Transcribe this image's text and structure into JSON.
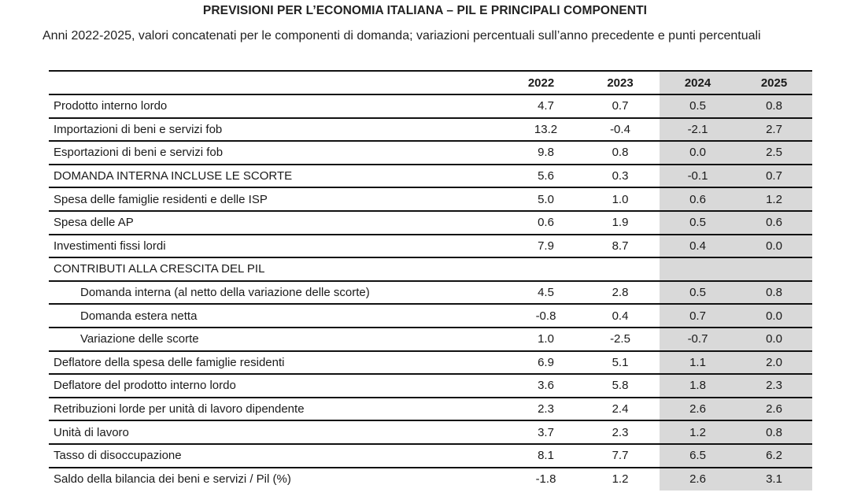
{
  "document": {
    "title": "PREVISIONI PER L’ECONOMIA ITALIANA – PIL E PRINCIPALI COMPONENTI",
    "subtitle": "Anni 2022-2025, valori concatenati per le componenti di domanda; variazioni percentuali sull’anno precedente e punti percentuali"
  },
  "table": {
    "header": {
      "label": "",
      "years": [
        "2022",
        "2023",
        "2024",
        "2025"
      ]
    },
    "forecast_shade_color": "#d9d9d9",
    "rows": [
      {
        "label": "Prodotto interno lordo",
        "indent": false,
        "values": [
          "4.7",
          "0.7",
          "0.5",
          "0.8"
        ]
      },
      {
        "label": "Importazioni di beni e servizi fob",
        "indent": false,
        "values": [
          "13.2",
          "-0.4",
          "-2.1",
          "2.7"
        ]
      },
      {
        "label": "Esportazioni di beni e servizi fob",
        "indent": false,
        "values": [
          "9.8",
          "0.8",
          "0.0",
          "2.5"
        ]
      },
      {
        "label": "DOMANDA INTERNA INCLUSE LE SCORTE",
        "indent": false,
        "values": [
          "5.6",
          "0.3",
          "-0.1",
          "0.7"
        ]
      },
      {
        "label": "Spesa delle famiglie residenti e delle ISP",
        "indent": false,
        "values": [
          "5.0",
          "1.0",
          "0.6",
          "1.2"
        ]
      },
      {
        "label": "Spesa delle AP",
        "indent": false,
        "values": [
          "0.6",
          "1.9",
          "0.5",
          "0.6"
        ]
      },
      {
        "label": "Investimenti fissi lordi",
        "indent": false,
        "values": [
          "7.9",
          "8.7",
          "0.4",
          "0.0"
        ]
      },
      {
        "label": "CONTRIBUTI ALLA CRESCITA DEL PIL",
        "indent": false,
        "values": [
          "",
          "",
          "",
          ""
        ]
      },
      {
        "label": "Domanda interna (al netto della variazione delle scorte)",
        "indent": true,
        "values": [
          "4.5",
          "2.8",
          "0.5",
          "0.8"
        ]
      },
      {
        "label": "Domanda estera netta",
        "indent": true,
        "values": [
          "-0.8",
          "0.4",
          "0.7",
          "0.0"
        ]
      },
      {
        "label": "Variazione delle scorte",
        "indent": true,
        "values": [
          "1.0",
          "-2.5",
          "-0.7",
          "0.0"
        ]
      },
      {
        "label": "Deflatore della spesa delle famiglie residenti",
        "indent": false,
        "values": [
          "6.9",
          "5.1",
          "1.1",
          "2.0"
        ]
      },
      {
        "label": "Deflatore del prodotto interno lordo",
        "indent": false,
        "values": [
          "3.6",
          "5.8",
          "1.8",
          "2.3"
        ]
      },
      {
        "label": "Retribuzioni lorde per unità di lavoro dipendente",
        "indent": false,
        "values": [
          "2.3",
          "2.4",
          "2.6",
          "2.6"
        ]
      },
      {
        "label": "Unità di lavoro",
        "indent": false,
        "values": [
          "3.7",
          "2.3",
          "1.2",
          "0.8"
        ]
      },
      {
        "label": "Tasso di disoccupazione",
        "indent": false,
        "values": [
          "8.1",
          "7.7",
          "6.5",
          "6.2"
        ]
      },
      {
        "label": "Saldo della bilancia dei beni e servizi / Pil (%)",
        "indent": false,
        "values": [
          "-1.8",
          "1.2",
          "2.6",
          "3.1"
        ]
      }
    ]
  }
}
